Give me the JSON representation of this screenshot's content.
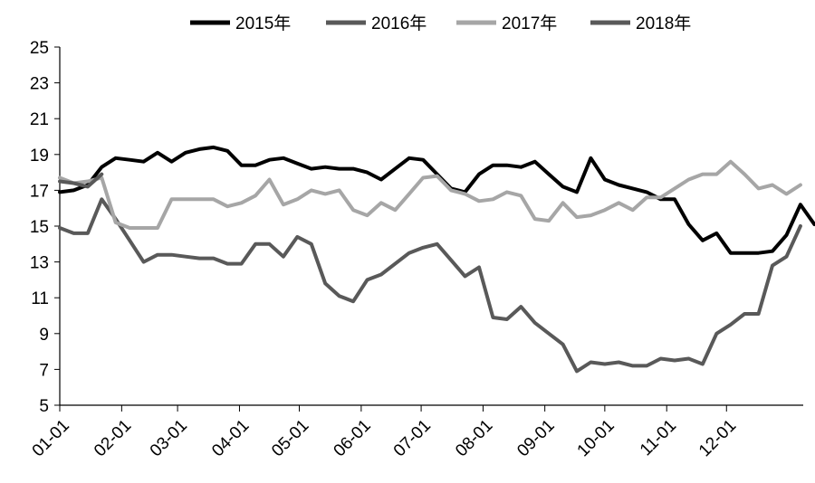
{
  "chart_data": {
    "type": "line",
    "title": "",
    "xlabel": "",
    "ylabel": "",
    "ylim": [
      5,
      25
    ],
    "yticks": [
      5,
      7,
      9,
      11,
      13,
      15,
      17,
      19,
      21,
      23,
      25
    ],
    "xticks": [
      "01-01",
      "02-01",
      "03-01",
      "04-01",
      "05-01",
      "06-01",
      "07-01",
      "08-01",
      "09-01",
      "10-01",
      "11-01",
      "12-01"
    ],
    "grid": false,
    "legend_position": "top",
    "series": [
      {
        "name": "2015年",
        "color": "#000000",
        "values": [
          16.9,
          17.0,
          17.3,
          18.3,
          18.8,
          18.7,
          18.6,
          19.1,
          18.6,
          19.1,
          19.3,
          19.4,
          19.2,
          18.4,
          18.4,
          18.7,
          18.8,
          18.5,
          18.2,
          18.3,
          18.2,
          18.2,
          18.0,
          17.6,
          18.2,
          18.8,
          18.7,
          17.9,
          17.1,
          16.9,
          17.9,
          18.4,
          18.4,
          18.3,
          18.6,
          17.9,
          17.2,
          16.9,
          18.8,
          17.6,
          17.3,
          17.1,
          16.9,
          16.5,
          16.5,
          15.1,
          14.2,
          14.6,
          13.5,
          13.5,
          13.5,
          13.6,
          14.5,
          16.2,
          15.1
        ]
      },
      {
        "name": "2016年",
        "color": "#595959",
        "values": [
          14.9,
          14.6,
          14.6,
          16.5,
          15.4,
          14.2,
          13.0,
          13.4,
          13.4,
          13.3,
          13.2,
          13.2,
          12.9,
          12.9,
          14.0,
          14.0,
          13.3,
          14.4,
          14.0,
          11.8,
          11.1,
          10.8,
          12.0,
          12.3,
          12.9,
          13.5,
          13.8,
          14.0,
          13.1,
          12.2,
          12.7,
          9.9,
          9.8,
          10.5,
          9.6,
          9.0,
          8.4,
          6.9,
          7.4,
          7.3,
          7.4,
          7.2,
          7.2,
          7.6,
          7.5,
          7.6,
          7.3,
          9.0,
          9.5,
          10.1,
          10.1,
          12.8,
          13.3,
          15.0
        ]
      },
      {
        "name": "2017年",
        "color": "#a6a6a6",
        "values": [
          17.7,
          17.4,
          17.5,
          17.7,
          15.2,
          14.9,
          14.9,
          14.9,
          16.5,
          16.5,
          16.5,
          16.5,
          16.1,
          16.3,
          16.7,
          17.6,
          16.2,
          16.5,
          17.0,
          16.8,
          17.0,
          15.9,
          15.6,
          16.3,
          15.9,
          16.8,
          17.7,
          17.8,
          17.0,
          16.8,
          16.4,
          16.5,
          16.9,
          16.7,
          15.4,
          15.3,
          16.3,
          15.5,
          15.6,
          15.9,
          16.3,
          15.9,
          16.6,
          16.6,
          17.1,
          17.6,
          17.9,
          17.9,
          18.6,
          17.9,
          17.1,
          17.3,
          16.8,
          17.3
        ]
      },
      {
        "name": "2018年",
        "color": "#595959",
        "values": [
          14.9,
          14.6,
          14.6,
          16.5,
          15.4,
          14.2,
          13.0,
          13.4,
          13.4,
          13.3,
          13.2,
          13.2,
          12.9,
          12.9,
          14.0,
          14.0,
          13.3,
          14.4,
          14.0,
          11.8,
          11.1,
          10.8,
          12.0,
          12.3,
          12.9,
          13.5,
          13.8,
          14.0,
          13.1,
          12.2,
          12.7,
          9.9,
          9.8,
          10.5,
          9.6,
          9.0,
          8.4,
          6.9,
          7.4,
          7.3,
          7.4,
          7.2,
          7.2,
          7.6,
          7.5,
          7.6,
          7.3,
          9.0,
          9.5,
          10.1,
          10.1,
          12.8,
          13.3,
          15.0
        ]
      }
    ]
  }
}
